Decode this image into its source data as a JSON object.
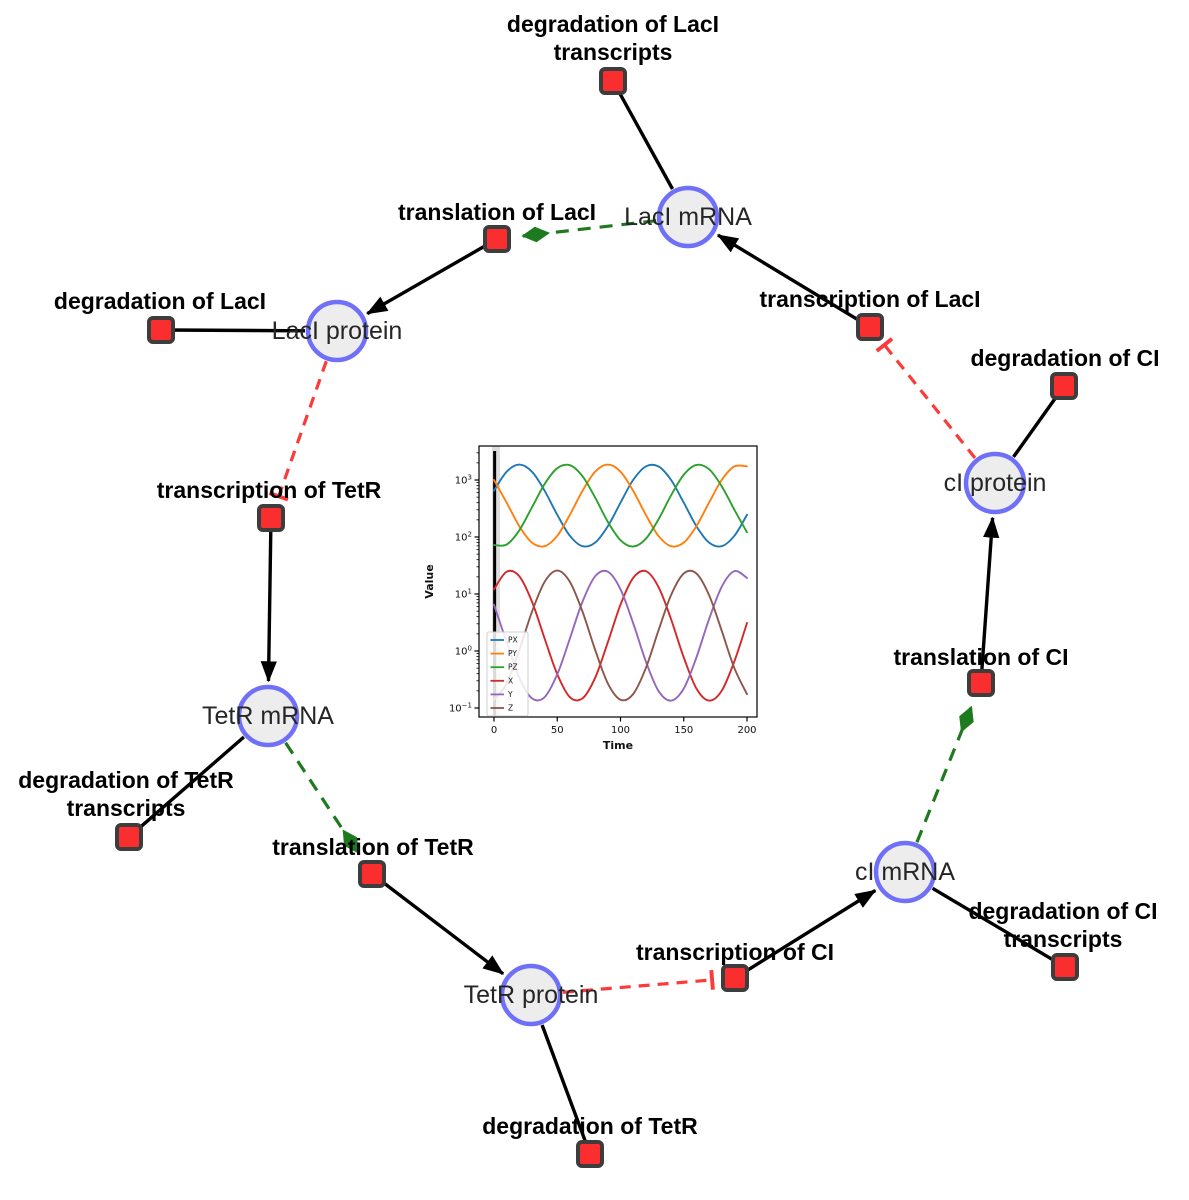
{
  "network": {
    "species": [
      {
        "id": "laci_mrna",
        "label": "LacI mRNA"
      },
      {
        "id": "laci_protein",
        "label": "LacI protein"
      },
      {
        "id": "tetr_mrna",
        "label": "TetR mRNA"
      },
      {
        "id": "tetr_protein",
        "label": "TetR protein"
      },
      {
        "id": "ci_mrna",
        "label": "cI mRNA"
      },
      {
        "id": "ci_protein",
        "label": "cI protein"
      }
    ],
    "reactions": [
      {
        "id": "deg_laci_tx",
        "label_lines": [
          "degradation of LacI",
          "transcripts"
        ]
      },
      {
        "id": "translation_laci",
        "label_lines": [
          "translation of LacI"
        ]
      },
      {
        "id": "transcription_laci",
        "label_lines": [
          "transcription of LacI"
        ]
      },
      {
        "id": "deg_laci",
        "label_lines": [
          "degradation of LacI"
        ]
      },
      {
        "id": "transcription_tetr",
        "label_lines": [
          "transcription of TetR"
        ]
      },
      {
        "id": "deg_tetr_tx",
        "label_lines": [
          "degradation of TetR",
          "transcripts"
        ]
      },
      {
        "id": "translation_tetr",
        "label_lines": [
          "translation of TetR"
        ]
      },
      {
        "id": "deg_tetr",
        "label_lines": [
          "degradation of TetR"
        ]
      },
      {
        "id": "transcription_ci",
        "label_lines": [
          "transcription of CI"
        ]
      },
      {
        "id": "deg_ci_tx",
        "label_lines": [
          "degradation of CI",
          "transcripts"
        ]
      },
      {
        "id": "translation_ci",
        "label_lines": [
          "translation of CI"
        ]
      },
      {
        "id": "deg_ci",
        "label_lines": [
          "degradation of CI"
        ]
      }
    ],
    "edges": [
      {
        "from": "laci_mrna",
        "to": "deg_laci_tx",
        "type": "consumption"
      },
      {
        "from": "laci_mrna",
        "to": "translation_laci",
        "type": "modifier"
      },
      {
        "from": "transcription_laci",
        "to": "laci_mrna",
        "type": "production"
      },
      {
        "from": "translation_laci",
        "to": "laci_protein",
        "type": "production"
      },
      {
        "from": "laci_protein",
        "to": "deg_laci",
        "type": "consumption"
      },
      {
        "from": "laci_protein",
        "to": "transcription_tetr",
        "type": "inhibition"
      },
      {
        "from": "transcription_tetr",
        "to": "tetr_mrna",
        "type": "production"
      },
      {
        "from": "tetr_mrna",
        "to": "deg_tetr_tx",
        "type": "consumption"
      },
      {
        "from": "tetr_mrna",
        "to": "translation_tetr",
        "type": "modifier"
      },
      {
        "from": "translation_tetr",
        "to": "tetr_protein",
        "type": "production"
      },
      {
        "from": "tetr_protein",
        "to": "deg_tetr",
        "type": "consumption"
      },
      {
        "from": "tetr_protein",
        "to": "transcription_ci",
        "type": "inhibition"
      },
      {
        "from": "transcription_ci",
        "to": "ci_mrna",
        "type": "production"
      },
      {
        "from": "ci_mrna",
        "to": "deg_ci_tx",
        "type": "consumption"
      },
      {
        "from": "ci_mrna",
        "to": "translation_ci",
        "type": "modifier"
      },
      {
        "from": "translation_ci",
        "to": "ci_protein",
        "type": "production"
      },
      {
        "from": "ci_protein",
        "to": "deg_ci",
        "type": "consumption"
      },
      {
        "from": "ci_protein",
        "to": "transcription_laci",
        "type": "inhibition"
      }
    ]
  },
  "chart_data": {
    "type": "line",
    "xlabel": "Time",
    "ylabel": "Value",
    "x_ticks": [
      0,
      50,
      100,
      150,
      200
    ],
    "y_scale": "log",
    "y_tick_exponents": [
      -1,
      0,
      1,
      2,
      3
    ],
    "xlim": [
      -10,
      210
    ],
    "ylim_log": [
      -1.16,
      3.6
    ],
    "legend_position": "lower left",
    "vline_x": 0.5,
    "x": [
      0,
      10,
      20,
      30,
      40,
      50,
      60,
      70,
      80,
      90,
      100,
      110,
      120,
      130,
      140,
      150,
      160,
      170,
      180,
      190,
      200
    ],
    "series": [
      {
        "name": "PX",
        "color": "#1f77b4",
        "values": [
          650,
          1400,
          1860,
          1400,
          650,
          245,
          105,
          69,
          80,
          155,
          400,
          1000,
          1730,
          1730,
          1000,
          400,
          155,
          80,
          69,
          105,
          245
        ]
      },
      {
        "name": "PY",
        "color": "#ff7f0e",
        "values": [
          1000,
          400,
          155,
          80,
          69,
          105,
          245,
          650,
          1400,
          1860,
          1400,
          650,
          245,
          105,
          69,
          80,
          155,
          400,
          1000,
          1730,
          1730
        ]
      },
      {
        "name": "PZ",
        "color": "#2ca02c",
        "values": [
          72,
          74,
          131,
          330,
          850,
          1610,
          1815,
          1160,
          490,
          185,
          88,
          68,
          93,
          203,
          540,
          1240,
          1840,
          1550,
          780,
          300,
          121
        ]
      },
      {
        "name": "X",
        "color": "#d62728",
        "values": [
          12.1,
          24.6,
          20.5,
          7.4,
          1.66,
          0.39,
          0.155,
          0.148,
          0.34,
          1.42,
          6.5,
          19.1,
          25.2,
          13.4,
          3.6,
          0.77,
          0.22,
          0.135,
          0.2,
          0.66,
          3.1
        ]
      },
      {
        "name": "Y",
        "color": "#9467bd",
        "values": [
          6.5,
          1.42,
          0.34,
          0.148,
          0.155,
          0.39,
          1.66,
          7.4,
          20.5,
          24.6,
          12.1,
          3.1,
          0.66,
          0.2,
          0.135,
          0.22,
          0.77,
          3.6,
          13.4,
          25.2,
          19.1
        ]
      },
      {
        "name": "Z",
        "color": "#8c564b",
        "values": [
          0.14,
          0.27,
          1.04,
          4.85,
          16.3,
          25.7,
          16.3,
          4.85,
          1.04,
          0.27,
          0.14,
          0.175,
          0.5,
          2.27,
          9.6,
          22.9,
          22.9,
          9.6,
          2.27,
          0.5,
          0.175
        ]
      }
    ]
  },
  "colors": {
    "species_fill": "#ededed",
    "species_stroke": "#6f6ff8",
    "reaction_fill": "#fa2e2e",
    "reaction_stroke": "#3d3d3d",
    "edge_black": "#000000",
    "modifier_green": "#1e7a1e",
    "inhibition_red": "#fb3a3a"
  }
}
